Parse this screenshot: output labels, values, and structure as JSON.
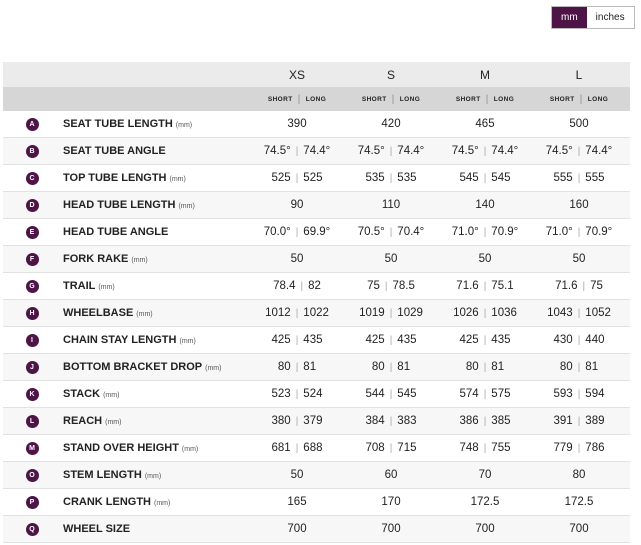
{
  "toggle": {
    "options": [
      "mm",
      "inches"
    ]
  },
  "table": {
    "sizes": [
      "XS",
      "S",
      "M",
      "L"
    ],
    "subheaders": [
      "SHORT",
      "LONG"
    ],
    "rows": [
      {
        "letter": "A",
        "label": "SEAT TUBE LENGTH",
        "unit": "(mm)",
        "values": [
          390,
          420,
          465,
          500
        ]
      },
      {
        "letter": "B",
        "label": "SEAT TUBE ANGLE",
        "values": [
          [
            "74.5°",
            "74.4°"
          ],
          [
            "74.5°",
            "74.4°"
          ],
          [
            "74.5°",
            "74.4°"
          ],
          [
            "74.5°",
            "74.4°"
          ]
        ]
      },
      {
        "letter": "C",
        "label": "TOP TUBE LENGTH",
        "unit": "(mm)",
        "values": [
          [
            525,
            525
          ],
          [
            535,
            535
          ],
          [
            545,
            545
          ],
          [
            555,
            555
          ]
        ]
      },
      {
        "letter": "D",
        "label": "HEAD TUBE LENGTH",
        "unit": "(mm)",
        "values": [
          90,
          110,
          140,
          160
        ]
      },
      {
        "letter": "E",
        "label": "HEAD TUBE ANGLE",
        "values": [
          [
            "70.0°",
            "69.9°"
          ],
          [
            "70.5°",
            "70.4°"
          ],
          [
            "71.0°",
            "70.9°"
          ],
          [
            "71.0°",
            "70.9°"
          ]
        ]
      },
      {
        "letter": "F",
        "label": "FORK RAKE",
        "unit": "(mm)",
        "values": [
          50,
          50,
          50,
          50
        ]
      },
      {
        "letter": "G",
        "label": "TRAIL",
        "unit": "(mm)",
        "values": [
          [
            78.4,
            82
          ],
          [
            75,
            78.5
          ],
          [
            71.6,
            75.1
          ],
          [
            71.6,
            75
          ]
        ]
      },
      {
        "letter": "H",
        "label": "WHEELBASE",
        "unit": "(mm)",
        "values": [
          [
            1012,
            1022
          ],
          [
            1019,
            1029
          ],
          [
            1026,
            1036
          ],
          [
            1043,
            1052
          ]
        ]
      },
      {
        "letter": "I",
        "label": "CHAIN STAY LENGTH",
        "unit": "(mm)",
        "values": [
          [
            425,
            435
          ],
          [
            425,
            435
          ],
          [
            425,
            435
          ],
          [
            430,
            440
          ]
        ]
      },
      {
        "letter": "J",
        "label": "BOTTOM BRACKET DROP",
        "unit": "(mm)",
        "values": [
          [
            80,
            81
          ],
          [
            80,
            81
          ],
          [
            80,
            81
          ],
          [
            80,
            81
          ]
        ]
      },
      {
        "letter": "K",
        "label": "STACK",
        "unit": "(mm)",
        "values": [
          [
            523,
            524
          ],
          [
            544,
            545
          ],
          [
            574,
            575
          ],
          [
            593,
            594
          ]
        ]
      },
      {
        "letter": "L",
        "label": "REACH",
        "unit": "(mm)",
        "values": [
          [
            380,
            379
          ],
          [
            384,
            383
          ],
          [
            386,
            385
          ],
          [
            391,
            389
          ]
        ]
      },
      {
        "letter": "M",
        "label": "STAND OVER HEIGHT",
        "unit": "(mm)",
        "values": [
          [
            681,
            688
          ],
          [
            708,
            715
          ],
          [
            748,
            755
          ],
          [
            779,
            786
          ]
        ]
      },
      {
        "letter": "O",
        "label": "STEM LENGTH",
        "unit": "(mm)",
        "values": [
          50,
          60,
          70,
          80
        ]
      },
      {
        "letter": "P",
        "label": "CRANK LENGTH",
        "unit": "(mm)",
        "values": [
          165,
          170,
          172.5,
          172.5
        ]
      },
      {
        "letter": "Q",
        "label": "WHEEL SIZE",
        "values": [
          700,
          700,
          700,
          700
        ]
      }
    ]
  }
}
